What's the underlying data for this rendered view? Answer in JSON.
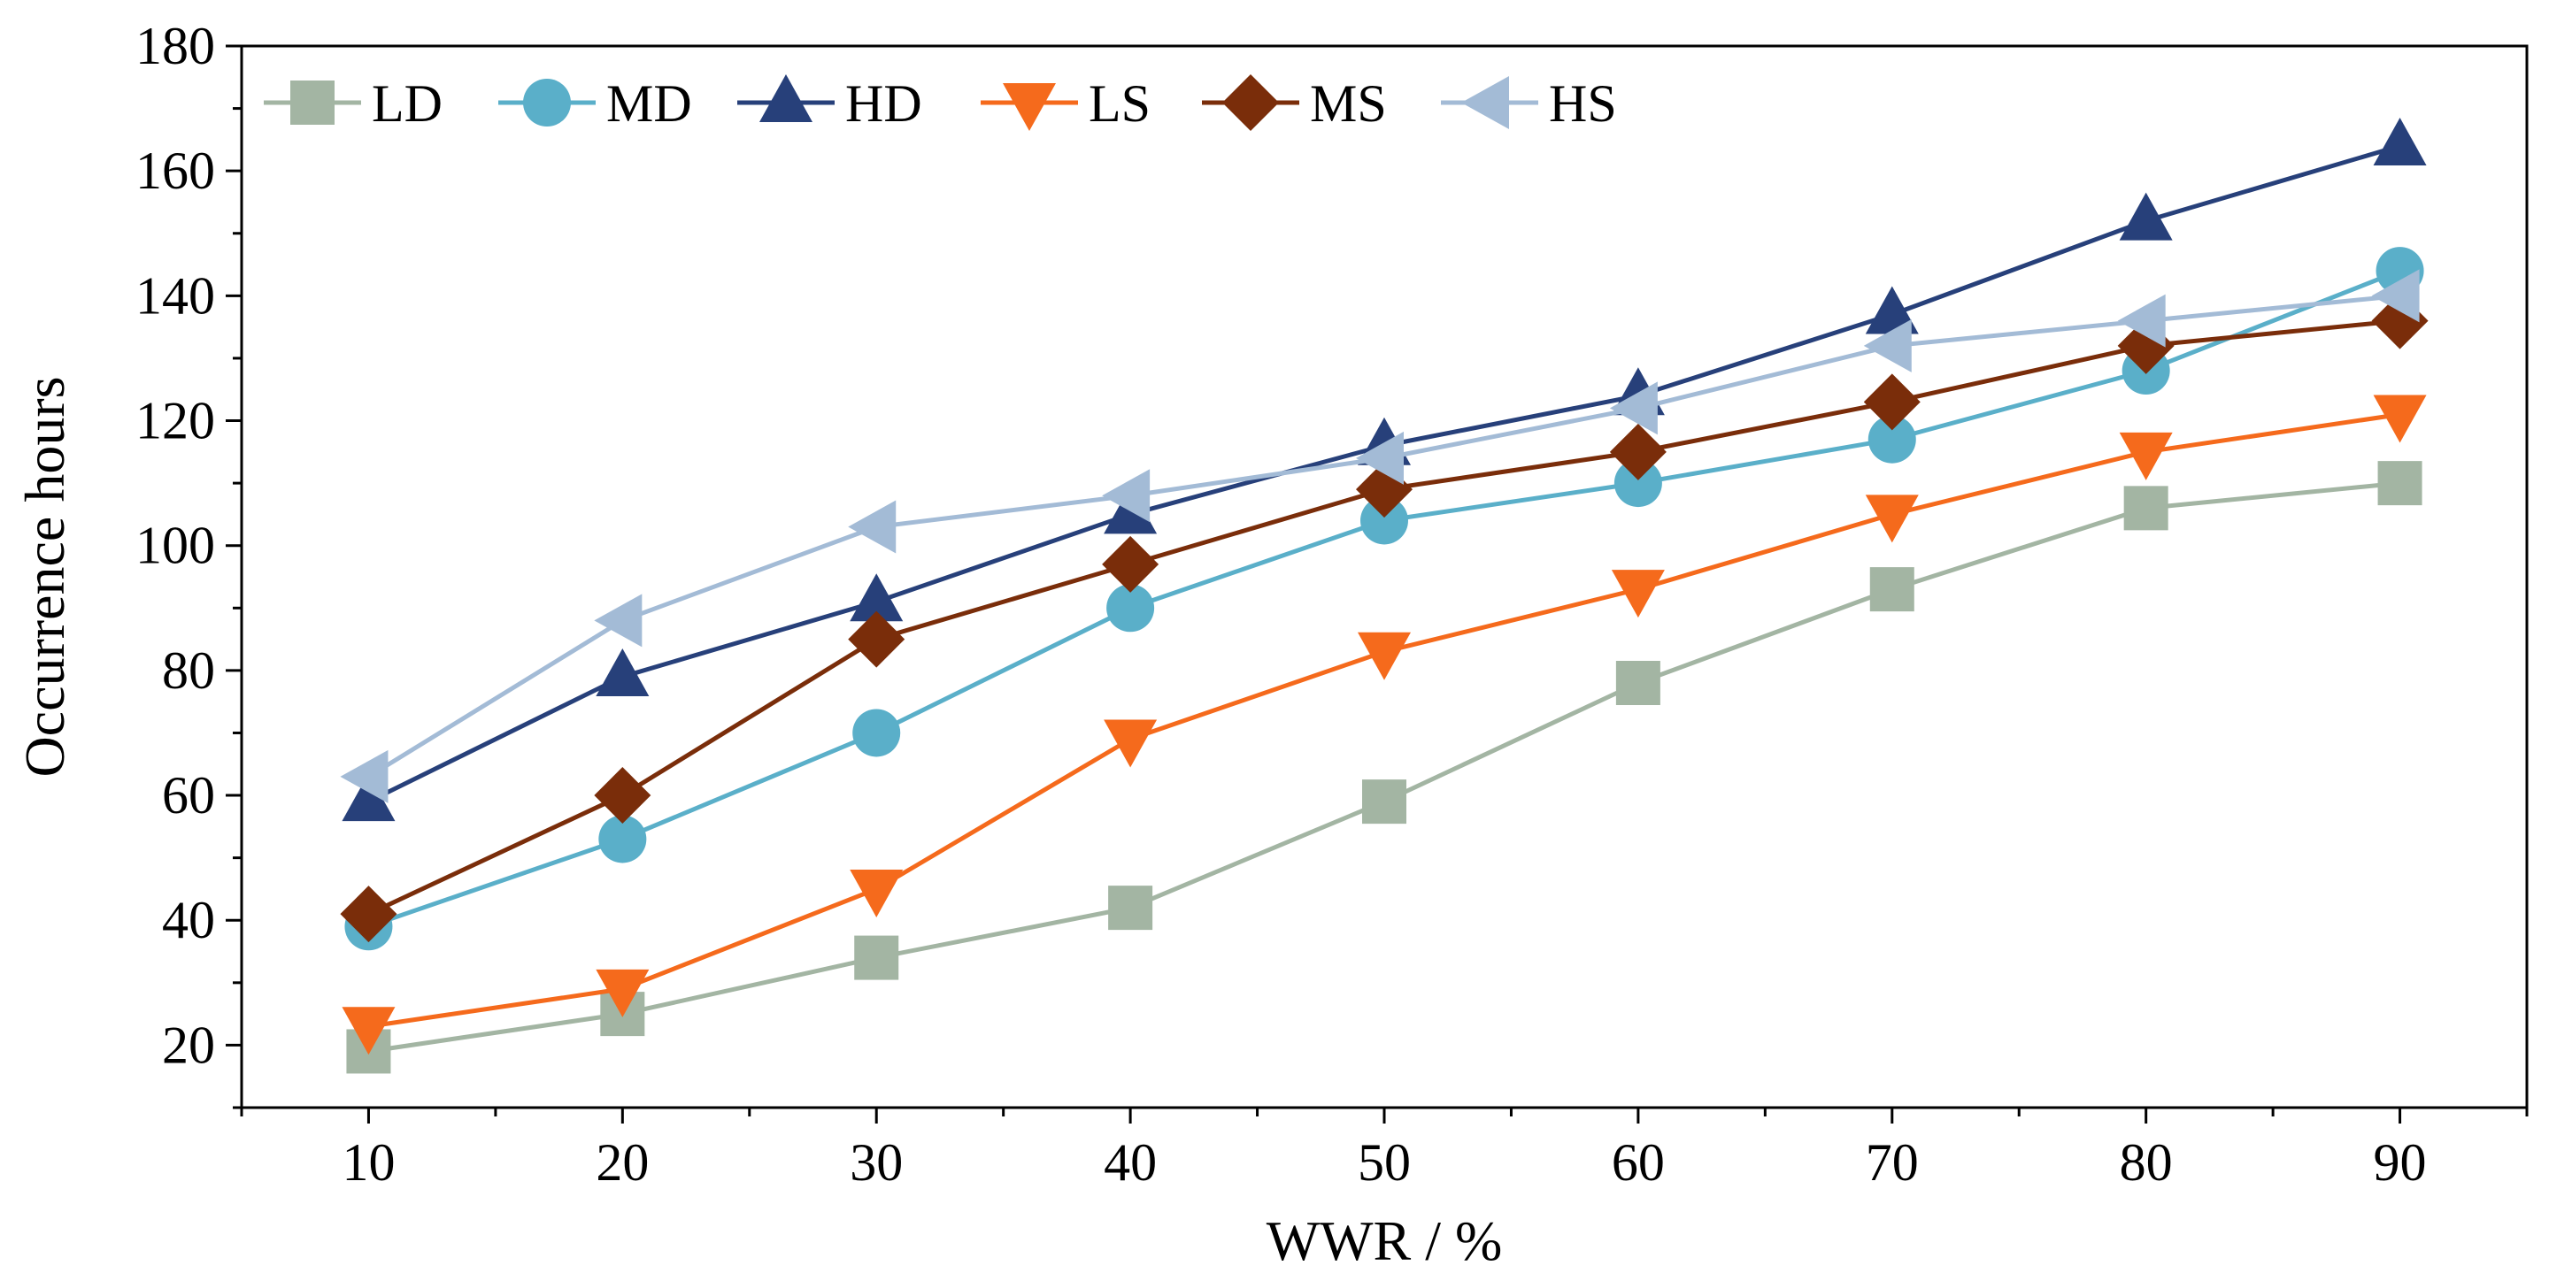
{
  "chart_data": {
    "type": "line",
    "title": "",
    "xlabel": "WWR / %",
    "ylabel": "Occurrence hours",
    "x": [
      10,
      20,
      30,
      40,
      50,
      60,
      70,
      80,
      90
    ],
    "xlim": [
      5,
      95
    ],
    "ylim": [
      10,
      180
    ],
    "xticks": [
      10,
      20,
      30,
      40,
      50,
      60,
      70,
      80,
      90
    ],
    "yticks": [
      20,
      40,
      60,
      80,
      100,
      120,
      140,
      160,
      180
    ],
    "grid": false,
    "legend_position": "top-left",
    "series": [
      {
        "name": "LD",
        "marker": "square",
        "color": "#a3b5a3",
        "values": [
          19,
          25,
          34,
          42,
          59,
          78,
          93,
          106,
          110
        ]
      },
      {
        "name": "MD",
        "marker": "circle",
        "color": "#5aafc9",
        "values": [
          39,
          53,
          70,
          90,
          104,
          110,
          117,
          128,
          144
        ]
      },
      {
        "name": "HD",
        "marker": "triangle-up",
        "color": "#27407a",
        "values": [
          59,
          79,
          91,
          105,
          116,
          124,
          137,
          152,
          164
        ]
      },
      {
        "name": "LS",
        "marker": "triangle-down",
        "color": "#f56a1c",
        "values": [
          23,
          29,
          45,
          69,
          83,
          93,
          105,
          115,
          121
        ]
      },
      {
        "name": "MS",
        "marker": "diamond",
        "color": "#7a2d0a",
        "values": [
          41,
          60,
          85,
          97,
          109,
          115,
          123,
          132,
          136
        ]
      },
      {
        "name": "HS",
        "marker": "triangle-left",
        "color": "#a3bbd6",
        "values": [
          63,
          88,
          103,
          108,
          114,
          122,
          132,
          136,
          140
        ]
      }
    ]
  }
}
